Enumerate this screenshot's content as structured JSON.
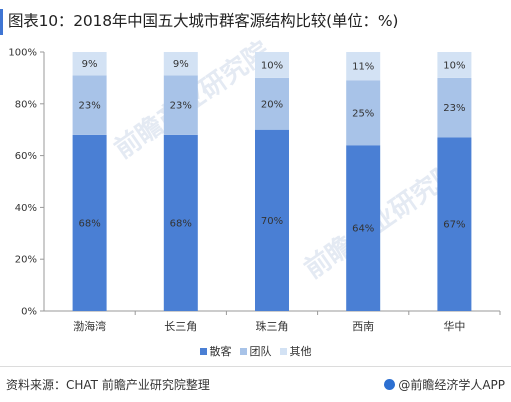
{
  "title": "图表10：2018年中国五大城市群客源结构比较(单位：%)",
  "colors": {
    "accent": "#3f75d3",
    "series": [
      "#4a7fd4",
      "#a8c3e8",
      "#d3e2f4"
    ]
  },
  "chart_data": {
    "type": "bar",
    "stacked": true,
    "categories": [
      "渤海湾",
      "长三角",
      "珠三角",
      "西南",
      "华中"
    ],
    "series": [
      {
        "name": "散客",
        "values": [
          68,
          68,
          70,
          64,
          67
        ]
      },
      {
        "name": "团队",
        "values": [
          23,
          23,
          20,
          25,
          23
        ]
      },
      {
        "name": "其他",
        "values": [
          9,
          9,
          10,
          11,
          10
        ]
      }
    ],
    "ylim": [
      0,
      100
    ],
    "yticks": [
      "0%",
      "20%",
      "40%",
      "60%",
      "80%",
      "100%"
    ],
    "data_label_suffix": "%",
    "legend_position": "bottom",
    "grid": false
  },
  "footer": {
    "source": "资料来源：CHAT 前瞻产业研究院整理",
    "brand": "@前瞻经济学人APP"
  }
}
